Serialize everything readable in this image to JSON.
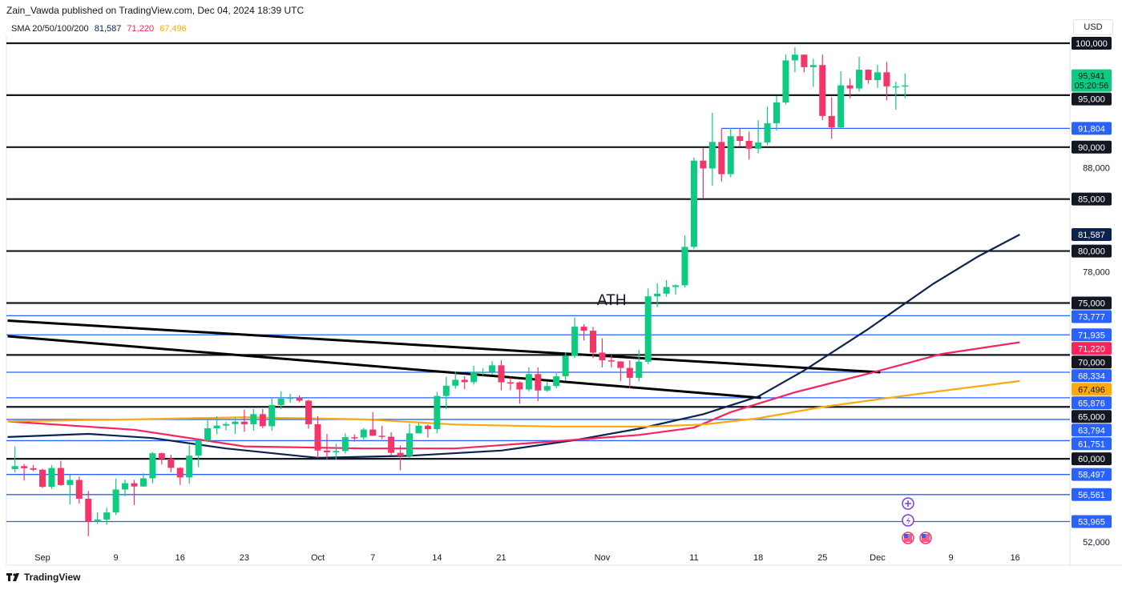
{
  "header": {
    "published": "Zain_Vawda published on TradingView.com, Dec 04, 2024 18:39 UTC"
  },
  "legend": {
    "name": "SMA 20/50/100/200",
    "v1": "81,587",
    "v2": "71,220",
    "v3": "67,496"
  },
  "currency": "USD",
  "footer": {
    "brand": "TradingView"
  },
  "colors": {
    "up": "#0ecb81",
    "down": "#f23668",
    "blue_level": "#2962ff",
    "black_level": "#131722",
    "sma_navy": "#0c2350",
    "sma_red": "#f7245e",
    "sma_orange": "#ffa90d"
  },
  "chart_data": {
    "type": "candlestick",
    "annotation": "ATH",
    "price_axis": {
      "min": 51000,
      "max": 100800,
      "ticks": [
        52000,
        54000,
        56000,
        58000,
        60000,
        62000,
        64000,
        66000,
        68000,
        70000,
        72000,
        74000,
        76000,
        78000,
        80000,
        82000,
        84000,
        86000,
        88000,
        90000,
        92000,
        94000,
        96000,
        98000
      ]
    },
    "time_axis": {
      "day0": "Sep 1",
      "ticks": [
        {
          "d": 0,
          "label": "Sep"
        },
        {
          "d": 8,
          "label": "9"
        },
        {
          "d": 15,
          "label": "16"
        },
        {
          "d": 22,
          "label": "23"
        },
        {
          "d": 30,
          "label": "Oct"
        },
        {
          "d": 36,
          "label": "7"
        },
        {
          "d": 43,
          "label": "14"
        },
        {
          "d": 50,
          "label": "21"
        },
        {
          "d": 61,
          "label": "Nov"
        },
        {
          "d": 71,
          "label": "11"
        },
        {
          "d": 78,
          "label": "18"
        },
        {
          "d": 85,
          "label": "25"
        },
        {
          "d": 91,
          "label": "Dec"
        },
        {
          "d": 99,
          "label": "9"
        },
        {
          "d": 106,
          "label": "16"
        }
      ]
    },
    "first_day": -3,
    "ohlc": [
      [
        59000,
        61200,
        58700,
        59300
      ],
      [
        59300,
        59500,
        57900,
        59100
      ],
      [
        59100,
        59400,
        58800,
        58950
      ],
      [
        58950,
        59050,
        57200,
        57300
      ],
      [
        57300,
        59400,
        57100,
        59120
      ],
      [
        59120,
        59800,
        57400,
        57480
      ],
      [
        57480,
        58500,
        55600,
        57970
      ],
      [
        57970,
        58300,
        55700,
        56160
      ],
      [
        56160,
        56900,
        52550,
        53960
      ],
      [
        53960,
        54850,
        53750,
        54150
      ],
      [
        54150,
        55300,
        53650,
        54840
      ],
      [
        54840,
        58100,
        54600,
        57050
      ],
      [
        57050,
        58000,
        56400,
        57650
      ],
      [
        57650,
        57980,
        55550,
        57340
      ],
      [
        57340,
        58600,
        57300,
        58130
      ],
      [
        58130,
        60650,
        57650,
        60540
      ],
      [
        60540,
        60600,
        59450,
        60000
      ],
      [
        60000,
        60400,
        58700,
        59130
      ],
      [
        59130,
        59200,
        57500,
        58210
      ],
      [
        58210,
        61350,
        57600,
        60310
      ],
      [
        60310,
        61780,
        59200,
        61760
      ],
      [
        61760,
        63850,
        61600,
        62940
      ],
      [
        62940,
        64100,
        62350,
        63200
      ],
      [
        63200,
        63550,
        62750,
        63350
      ],
      [
        63350,
        64000,
        62400,
        63580
      ],
      [
        63580,
        64750,
        62600,
        63330
      ],
      [
        63330,
        64800,
        62700,
        64300
      ],
      [
        64300,
        64800,
        62950,
        63140
      ],
      [
        63140,
        65800,
        62700,
        65180
      ],
      [
        65180,
        66500,
        64800,
        65790
      ],
      [
        65790,
        66250,
        65400,
        65880
      ],
      [
        65880,
        66100,
        65450,
        65600
      ],
      [
        65600,
        65700,
        62900,
        63330
      ],
      [
        63330,
        64100,
        60100,
        60800
      ],
      [
        60800,
        62400,
        59950,
        60630
      ],
      [
        60630,
        61450,
        59900,
        60750
      ],
      [
        60750,
        62450,
        60500,
        62080
      ],
      [
        62080,
        62350,
        61650,
        62060
      ],
      [
        62060,
        62950,
        61850,
        62820
      ],
      [
        62820,
        64500,
        62200,
        62220
      ],
      [
        62220,
        63200,
        61900,
        62130
      ],
      [
        62130,
        62550,
        60300,
        60580
      ],
      [
        60580,
        61300,
        58900,
        60270
      ],
      [
        60270,
        63400,
        60050,
        62450
      ],
      [
        62450,
        63450,
        62450,
        63190
      ],
      [
        63190,
        63300,
        62050,
        62850
      ],
      [
        62850,
        66450,
        62450,
        66050
      ],
      [
        66050,
        67900,
        64800,
        67040
      ],
      [
        67040,
        68400,
        66750,
        67610
      ],
      [
        67610,
        67950,
        66700,
        67380
      ],
      [
        67380,
        68950,
        67150,
        68370
      ],
      [
        68370,
        68700,
        68000,
        68370
      ],
      [
        68370,
        69400,
        68100,
        69000
      ],
      [
        69000,
        69500,
        66600,
        67370
      ],
      [
        67370,
        67850,
        66600,
        67360
      ],
      [
        67360,
        67450,
        65300,
        66680
      ],
      [
        66680,
        68800,
        66500,
        68160
      ],
      [
        68160,
        68800,
        65550,
        66580
      ],
      [
        66580,
        67400,
        66450,
        67010
      ],
      [
        67010,
        68250,
        66800,
        67940
      ],
      [
        67940,
        70250,
        67550,
        69900
      ],
      [
        69900,
        73600,
        69700,
        72720
      ],
      [
        72720,
        72950,
        71400,
        72330
      ],
      [
        72330,
        72700,
        69700,
        70220
      ],
      [
        70220,
        71600,
        68800,
        69480
      ],
      [
        69480,
        70000,
        68800,
        69370
      ],
      [
        69370,
        69400,
        67500,
        68750
      ],
      [
        68750,
        69500,
        66800,
        67800
      ],
      [
        67800,
        70500,
        67450,
        69350
      ],
      [
        69350,
        76400,
        69100,
        75640
      ],
      [
        75640,
        76900,
        74600,
        75900
      ],
      [
        75900,
        77200,
        75600,
        76540
      ],
      [
        76540,
        76800,
        75800,
        76700
      ],
      [
        76700,
        81500,
        76500,
        80400
      ],
      [
        80400,
        89000,
        80200,
        88700
      ],
      [
        88700,
        89900,
        85100,
        87950
      ],
      [
        87950,
        93300,
        86300,
        90500
      ],
      [
        90500,
        91800,
        86700,
        87400
      ],
      [
        87400,
        91850,
        87100,
        91050
      ],
      [
        91050,
        91800,
        90100,
        90600
      ],
      [
        90600,
        91500,
        88800,
        89850
      ],
      [
        89850,
        92600,
        89400,
        90450
      ],
      [
        90450,
        93900,
        90200,
        92300
      ],
      [
        92300,
        94900,
        91600,
        94300
      ],
      [
        94300,
        98900,
        94100,
        98350
      ],
      [
        98350,
        99600,
        97200,
        98900
      ],
      [
        98900,
        98900,
        97200,
        97700
      ],
      [
        97700,
        98500,
        95800,
        97900
      ],
      [
        97900,
        98900,
        92600,
        93000
      ],
      [
        93000,
        94800,
        90800,
        91900
      ],
      [
        91900,
        97300,
        91800,
        95950
      ],
      [
        95950,
        96600,
        94700,
        95650
      ],
      [
        95650,
        98700,
        95350,
        97450
      ],
      [
        97450,
        97500,
        96100,
        96450
      ],
      [
        96450,
        97900,
        95700,
        97200
      ],
      [
        97200,
        98200,
        94500,
        95850
      ],
      [
        95850,
        96300,
        93600,
        95850
      ],
      [
        95850,
        97100,
        94700,
        95941
      ]
    ],
    "last_price": {
      "value": "95,941",
      "countdown": "05:20:56"
    },
    "black_levels": [
      {
        "v": 100000,
        "label": "100,000"
      },
      {
        "v": 95000,
        "label": "95,000"
      },
      {
        "v": 90000,
        "label": "90,000"
      },
      {
        "v": 85000,
        "label": "85,000"
      },
      {
        "v": 80000,
        "label": "80,000"
      },
      {
        "v": 75000,
        "label": "75,000"
      },
      {
        "v": 70000,
        "label": "70,000"
      },
      {
        "v": 65000,
        "label": "65,000"
      },
      {
        "v": 60000,
        "label": "60,000"
      }
    ],
    "blue_levels": [
      {
        "v": 91804,
        "label": "91,804",
        "from_day": 74
      },
      {
        "v": 73777,
        "label": "73,777"
      },
      {
        "v": 71935,
        "label": "71,935"
      },
      {
        "v": 68334,
        "label": "68,334"
      },
      {
        "v": 65876,
        "label": "65,876"
      },
      {
        "v": 63794,
        "label": "63,794"
      },
      {
        "v": 61751,
        "label": "61,751"
      },
      {
        "v": 58497,
        "label": "58,497"
      },
      {
        "v": 56561,
        "label": "56,561"
      },
      {
        "v": 53965,
        "label": "53,965"
      }
    ],
    "trendlines": [
      {
        "from": [
          -3.8,
          73300
        ],
        "to": [
          91.3,
          68330
        ]
      },
      {
        "from": [
          -3.8,
          71800
        ],
        "to": [
          78.3,
          65870
        ]
      }
    ],
    "sma": [
      {
        "name": "navy",
        "label": "81,587",
        "last": 81587,
        "points": [
          [
            -3.8,
            62100
          ],
          [
            5,
            62400
          ],
          [
            12,
            62000
          ],
          [
            20,
            61000
          ],
          [
            30,
            60100
          ],
          [
            40,
            60300
          ],
          [
            50,
            60800
          ],
          [
            58,
            61800
          ],
          [
            65,
            62900
          ],
          [
            72,
            64300
          ],
          [
            78,
            66000
          ],
          [
            83,
            68500
          ],
          [
            90,
            72500
          ],
          [
            97,
            76800
          ],
          [
            102,
            79500
          ],
          [
            106.5,
            81587
          ]
        ]
      },
      {
        "name": "red",
        "label": "71,220",
        "last": 71220,
        "points": [
          [
            -3.8,
            63600
          ],
          [
            10,
            62800
          ],
          [
            22,
            61200
          ],
          [
            35,
            61000
          ],
          [
            45,
            61000
          ],
          [
            56,
            61700
          ],
          [
            65,
            62300
          ],
          [
            71,
            63000
          ],
          [
            75,
            64500
          ],
          [
            82,
            66400
          ],
          [
            90,
            68200
          ],
          [
            98,
            70100
          ],
          [
            106.5,
            71220
          ]
        ]
      },
      {
        "name": "orange",
        "label": "67,496",
        "last": 67496,
        "points": [
          [
            -3.8,
            63600
          ],
          [
            10,
            63800
          ],
          [
            22,
            64000
          ],
          [
            35,
            63800
          ],
          [
            45,
            63300
          ],
          [
            56,
            63100
          ],
          [
            66,
            63100
          ],
          [
            72,
            63300
          ],
          [
            78,
            63900
          ],
          [
            85,
            65000
          ],
          [
            95,
            66200
          ],
          [
            106.5,
            67496
          ]
        ]
      }
    ]
  }
}
